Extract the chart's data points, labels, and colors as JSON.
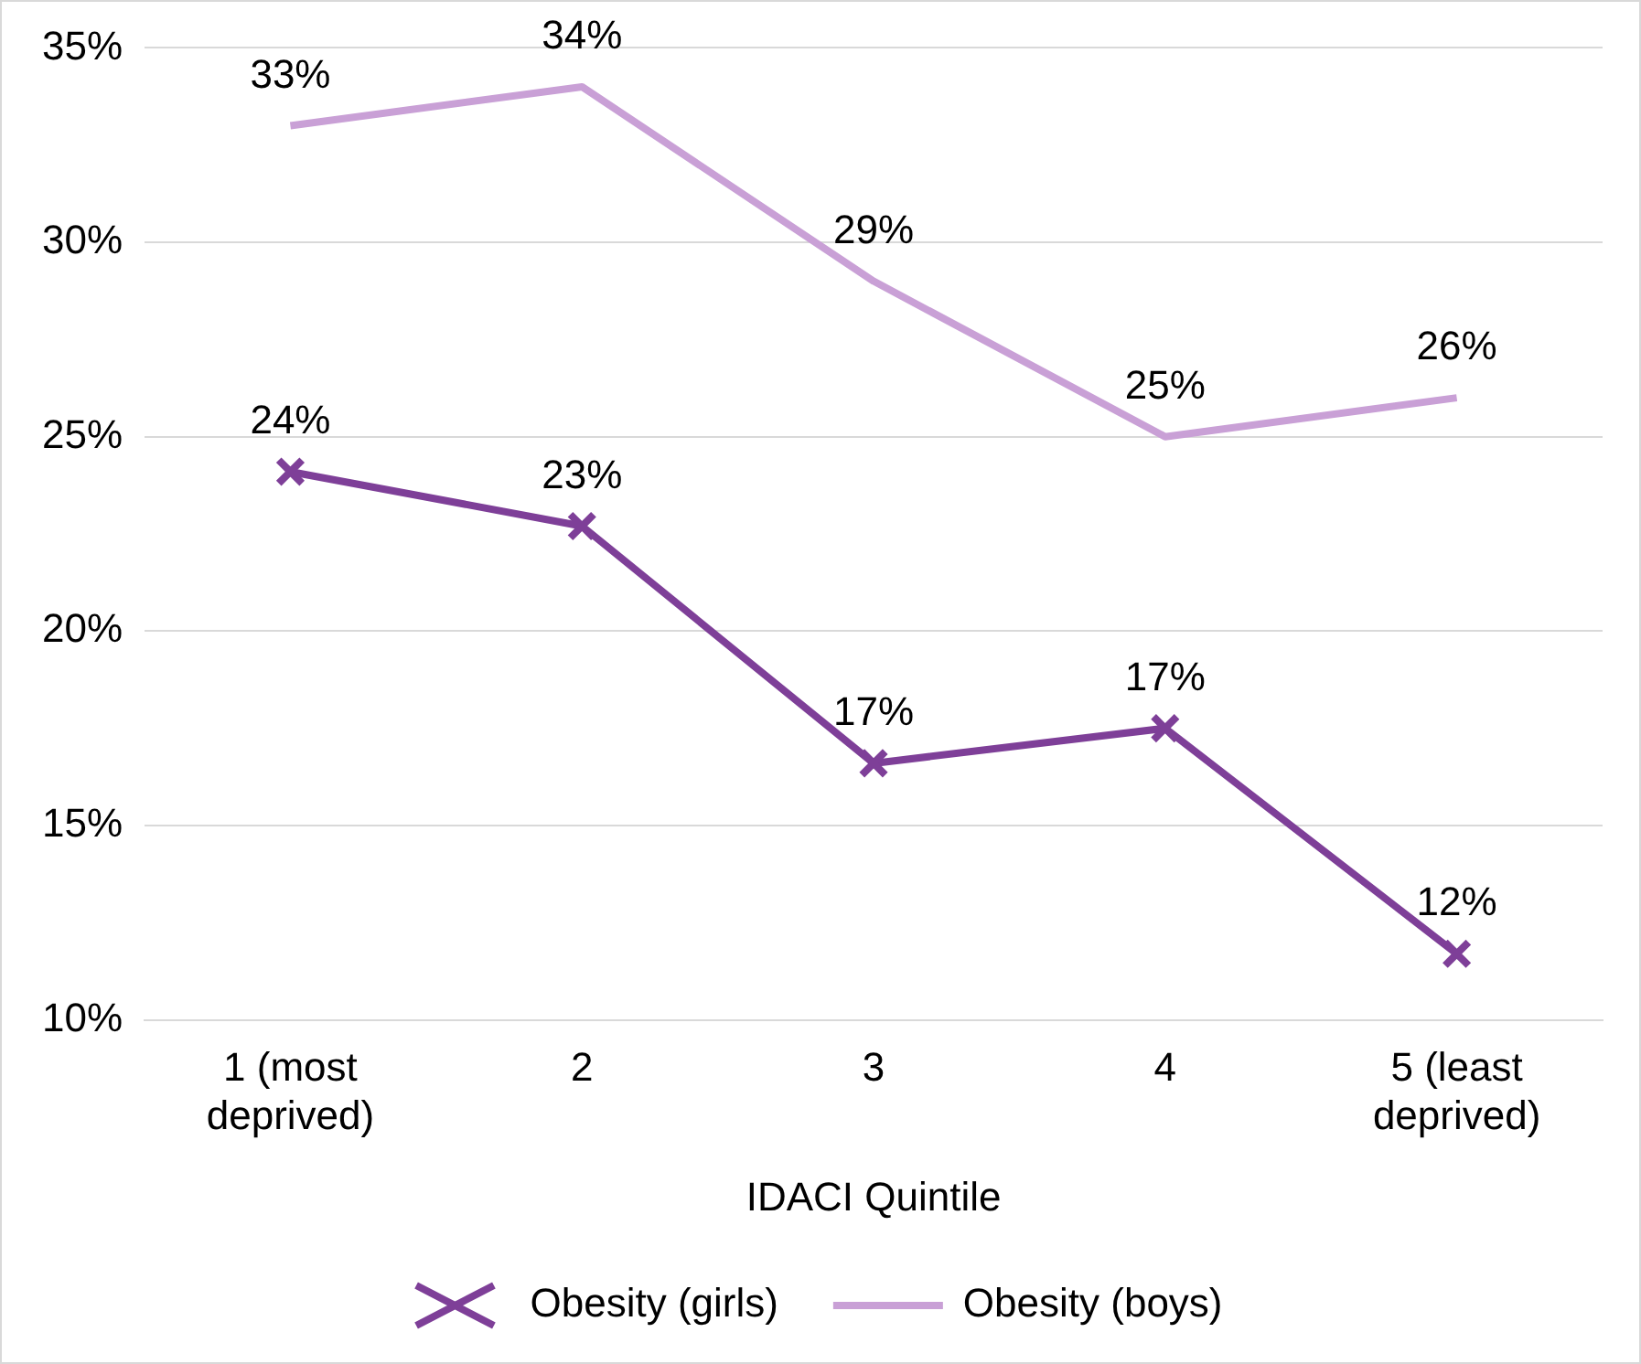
{
  "chart_data": {
    "type": "line",
    "xlabel": "IDACI Quintile",
    "categories": [
      "1 (most deprived)",
      "2",
      "3",
      "4",
      "5 (least deprived)"
    ],
    "series": [
      {
        "name": "Obesity (girls)",
        "color": "#7e3f98",
        "marker": "cross",
        "values": [
          24.1,
          22.7,
          16.6,
          17.5,
          11.7
        ],
        "value_labels": [
          "24%",
          "23%",
          "17%",
          "17%",
          "12%"
        ]
      },
      {
        "name": "Obesity (boys)",
        "color": "#c9a0d6",
        "marker": "none",
        "values": [
          33.0,
          34.0,
          29.0,
          25.0,
          26.0
        ],
        "value_labels": [
          "33%",
          "34%",
          "29%",
          "25%",
          "26%"
        ]
      }
    ],
    "ylim": [
      10,
      35
    ],
    "yticks": [
      {
        "value": 10,
        "label": "10%"
      },
      {
        "value": 15,
        "label": "15%"
      },
      {
        "value": 20,
        "label": "20%"
      },
      {
        "value": 25,
        "label": "25%"
      },
      {
        "value": 30,
        "label": "30%"
      },
      {
        "value": 35,
        "label": "35%"
      }
    ],
    "grid": "y",
    "legend": "bottom",
    "line_style": "solid"
  }
}
